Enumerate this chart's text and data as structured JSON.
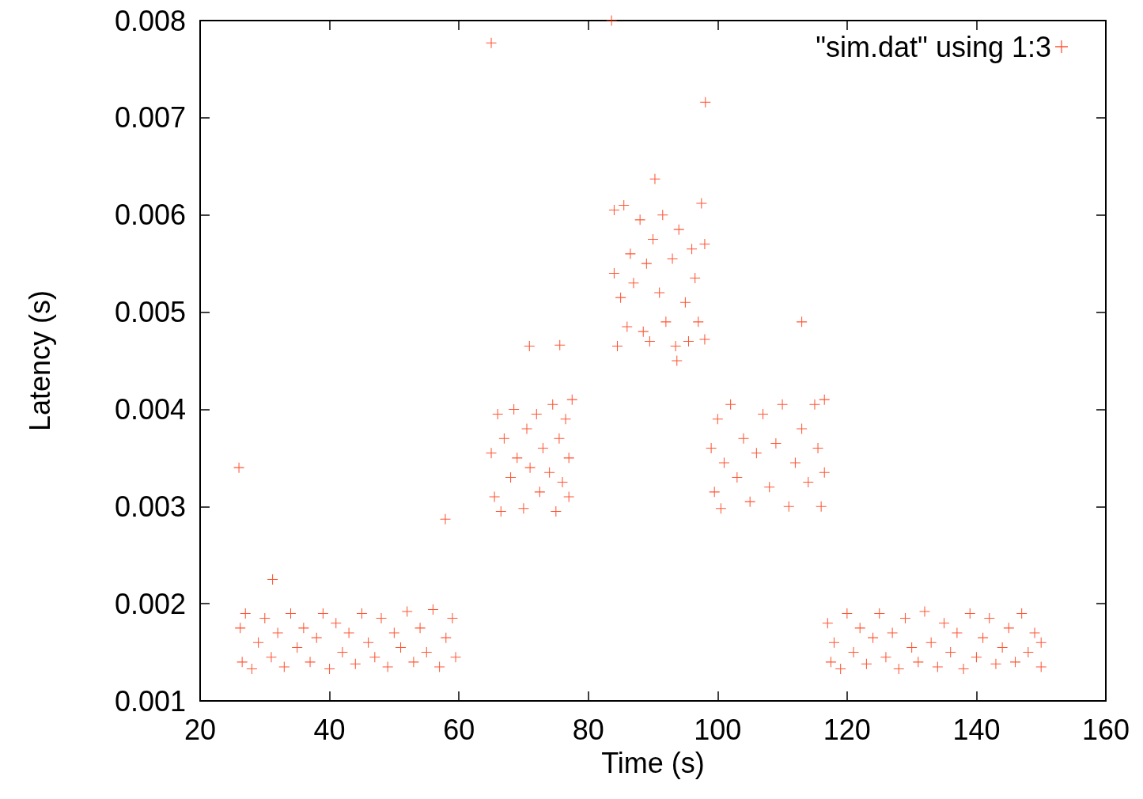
{
  "chart_data": {
    "type": "scatter",
    "xlabel": "Time (s)",
    "ylabel": "Latency (s)",
    "xlim": [
      20,
      160
    ],
    "xticks": [
      20,
      40,
      60,
      80,
      100,
      120,
      140,
      160
    ],
    "ylim": [
      0.001,
      0.008
    ],
    "yticks": [
      0.001,
      0.002,
      0.003,
      0.004,
      0.005,
      0.006,
      0.007,
      0.008
    ],
    "grid": false,
    "legend": "top right",
    "marker": "cross",
    "series": [
      {
        "name": "\"sim.dat\" using 1:3",
        "color": "#ff2a00",
        "x": [
          26.2,
          26.5,
          27,
          28,
          29,
          30,
          31,
          32,
          33,
          34,
          35,
          36,
          37,
          38,
          39,
          40,
          41,
          42,
          43,
          44,
          45,
          46,
          47,
          48,
          49,
          50,
          51,
          52,
          53,
          54,
          55,
          56,
          57,
          58,
          59,
          59.5,
          117,
          117.5,
          118,
          119,
          120,
          121,
          122,
          123,
          124,
          125,
          126,
          127,
          128,
          129,
          130,
          131,
          132,
          133,
          134,
          135,
          136,
          137,
          138,
          139,
          140,
          141,
          142,
          143,
          144,
          145,
          146,
          147,
          148,
          149,
          150,
          150,
          65,
          65.5,
          66,
          66.5,
          67,
          68,
          68.5,
          69,
          70,
          70.5,
          71,
          72,
          72.5,
          73,
          74,
          74.5,
          75,
          75.5,
          76,
          76.5,
          77,
          77.5,
          77,
          99,
          99.5,
          100,
          100.5,
          101,
          102,
          103,
          104,
          105,
          106,
          107,
          108,
          109,
          110,
          111,
          112,
          113,
          114,
          115,
          115.5,
          116,
          116.5,
          116.5,
          84,
          84,
          84.5,
          85,
          85.5,
          86,
          86.5,
          87,
          88,
          88.5,
          89,
          89.5,
          90,
          91,
          91.5,
          92,
          93,
          93.5,
          94,
          95,
          95.5,
          96,
          96.5,
          97,
          97.5,
          98,
          98,
          26,
          31.2,
          57.9,
          65,
          83.6,
          98.1,
          90.3,
          70.9,
          75.6,
          113,
          93.7
        ],
        "values": [
          0.00175,
          0.0014,
          0.0019,
          0.00133,
          0.0016,
          0.00185,
          0.00145,
          0.0017,
          0.00135,
          0.0019,
          0.00155,
          0.00175,
          0.0014,
          0.00165,
          0.0019,
          0.00133,
          0.0018,
          0.0015,
          0.0017,
          0.00138,
          0.0019,
          0.0016,
          0.00145,
          0.00185,
          0.00135,
          0.0017,
          0.00155,
          0.00192,
          0.0014,
          0.00175,
          0.0015,
          0.00194,
          0.00135,
          0.00165,
          0.00185,
          0.00145,
          0.0018,
          0.0014,
          0.0016,
          0.00133,
          0.0019,
          0.0015,
          0.00175,
          0.00138,
          0.00165,
          0.0019,
          0.00145,
          0.0017,
          0.00133,
          0.00185,
          0.00155,
          0.0014,
          0.00192,
          0.0016,
          0.00135,
          0.0018,
          0.0015,
          0.0017,
          0.00133,
          0.0019,
          0.00145,
          0.00165,
          0.00185,
          0.00138,
          0.00155,
          0.00175,
          0.0014,
          0.0019,
          0.0015,
          0.0017,
          0.00135,
          0.0016,
          0.00355,
          0.0031,
          0.00395,
          0.00295,
          0.0037,
          0.0033,
          0.004,
          0.0035,
          0.00298,
          0.0038,
          0.0034,
          0.00395,
          0.00315,
          0.0036,
          0.00335,
          0.00405,
          0.00295,
          0.0037,
          0.00325,
          0.0039,
          0.0035,
          0.0041,
          0.0031,
          0.0036,
          0.00315,
          0.0039,
          0.00298,
          0.00345,
          0.00405,
          0.0033,
          0.0037,
          0.00305,
          0.00355,
          0.00395,
          0.0032,
          0.00365,
          0.00405,
          0.003,
          0.00345,
          0.0038,
          0.00325,
          0.00405,
          0.0036,
          0.003,
          0.0041,
          0.00335,
          0.0054,
          0.00605,
          0.00465,
          0.00515,
          0.0061,
          0.00485,
          0.0056,
          0.0053,
          0.00595,
          0.0048,
          0.0055,
          0.0047,
          0.00575,
          0.0052,
          0.006,
          0.0049,
          0.00555,
          0.00465,
          0.00585,
          0.0051,
          0.0047,
          0.00565,
          0.00535,
          0.0049,
          0.00612,
          0.00472,
          0.0057,
          0.0034,
          0.00225,
          0.00287,
          0.00777,
          0.008,
          0.00716,
          0.00637,
          0.00465,
          0.00466,
          0.0049,
          0.0045
        ]
      }
    ]
  }
}
